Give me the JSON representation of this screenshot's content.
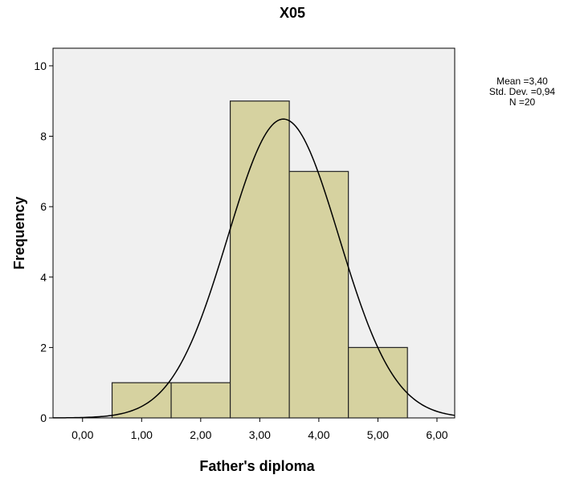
{
  "chart_data": {
    "type": "histogram",
    "title": "X05",
    "xlabel": "Father's diploma",
    "ylabel": "Frequency",
    "bin_edges": [
      0.5,
      1.5,
      2.5,
      3.5,
      4.5,
      5.5
    ],
    "values": [
      1,
      1,
      9,
      7,
      2
    ],
    "xlim": [
      -0.5,
      6.3
    ],
    "ylim": [
      0,
      10.5
    ],
    "x_ticks": [
      0,
      1,
      2,
      3,
      4,
      5,
      6
    ],
    "x_tick_labels": [
      "0,00",
      "1,00",
      "2,00",
      "3,00",
      "4,00",
      "5,00",
      "6,00"
    ],
    "y_ticks": [
      0,
      2,
      4,
      6,
      8,
      10
    ],
    "y_tick_labels": [
      "0",
      "2",
      "4",
      "6",
      "8",
      "10"
    ],
    "normal_curve": {
      "mean": 3.4,
      "std": 0.94,
      "n": 20,
      "bin_width": 1
    },
    "stats_lines": [
      "Mean =3,40",
      "Std. Dev. =0,94",
      "N =20"
    ],
    "plot_background": "#f0f0f0",
    "bar_fill": "#d6d2a0",
    "bar_stroke": "#222222",
    "curve_color": "#000000",
    "grid": false,
    "stats_placement": "top-right"
  }
}
